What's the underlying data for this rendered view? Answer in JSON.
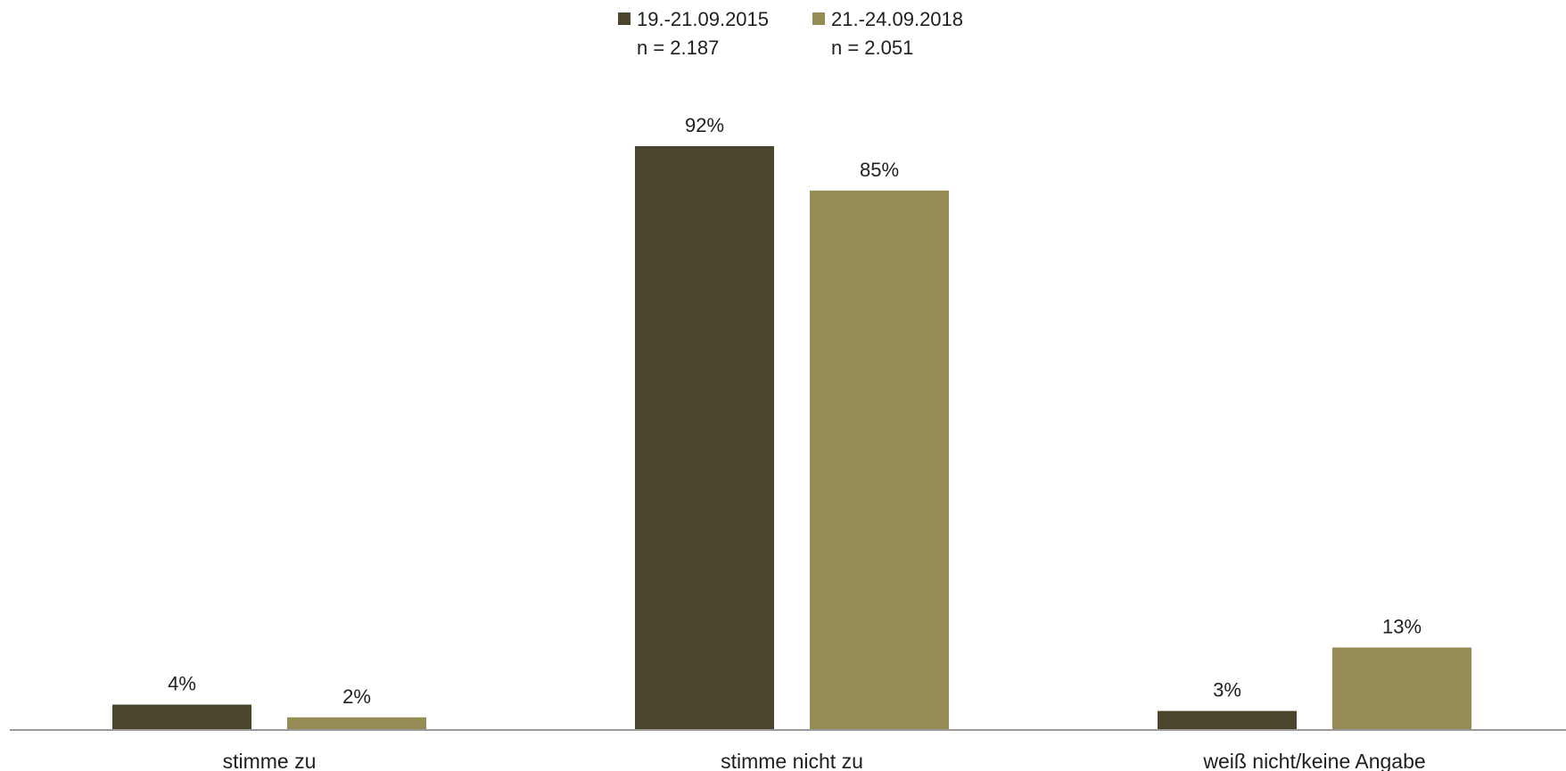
{
  "chart_data": {
    "type": "bar",
    "categories": [
      "stimme zu",
      "stimme nicht zu",
      "weiß nicht/keine Angabe"
    ],
    "series": [
      {
        "name": "19.-21.09.2015",
        "sample": "n = 2.187",
        "color": "#4b452d",
        "values": [
          4,
          92,
          3
        ],
        "labels": [
          "4%",
          "92%",
          "3%"
        ]
      },
      {
        "name": "21.-24.09.2018",
        "sample": "n = 2.051",
        "color": "#958b54",
        "values": [
          2,
          85,
          13
        ],
        "labels": [
          "2%",
          "85%",
          "13%"
        ]
      }
    ],
    "ylim": [
      0,
      100
    ],
    "unit": "%",
    "grid": false,
    "legend_position": "top-center",
    "axis_color": "#9a9a9a"
  }
}
